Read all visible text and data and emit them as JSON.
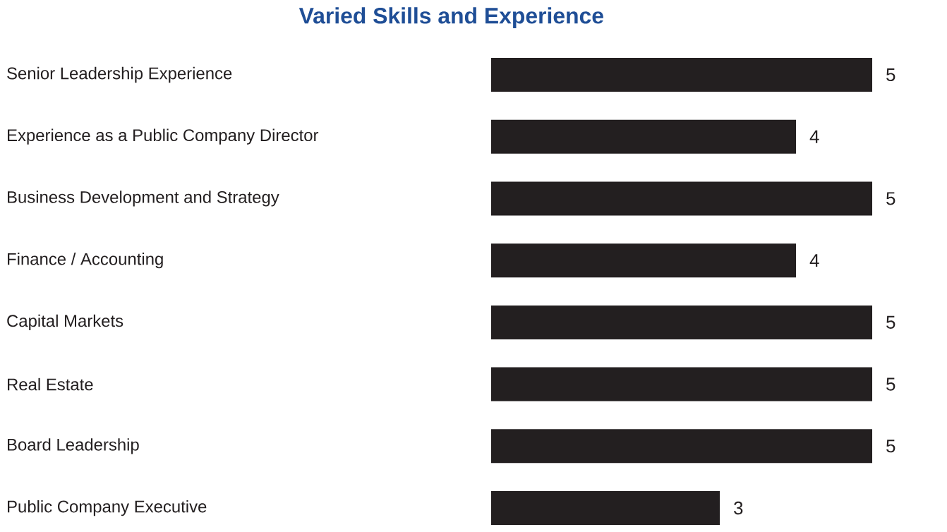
{
  "chart_data": {
    "type": "bar",
    "orientation": "horizontal",
    "title": "Varied Skills and Experience",
    "categories": [
      "Senior Leadership Experience",
      "Experience as a Public Company Director",
      "Business Development and Strategy",
      "Finance / Accounting",
      "Capital Markets",
      "Real Estate",
      "Board Leadership",
      "Public Company Executive"
    ],
    "values": [
      5,
      4,
      5,
      4,
      5,
      5,
      5,
      3
    ],
    "color": "#231f20",
    "data_labels": true
  }
}
